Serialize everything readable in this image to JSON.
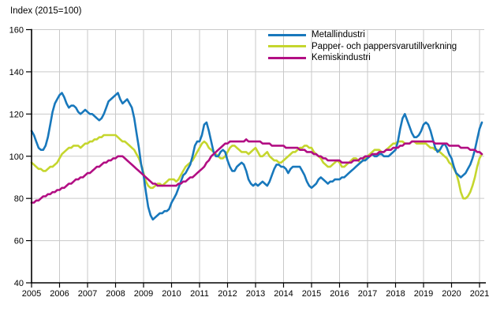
{
  "header": {
    "index_label": "Index (2015=100)"
  },
  "colors": {
    "background": "#ffffff",
    "grid": "#c9c9c9",
    "axis": "#000000",
    "metall": "#1878bc",
    "papper": "#c5d62e",
    "kemisk": "#b20e83"
  },
  "chart_data": {
    "type": "line",
    "title": "Index (2015=100)",
    "xlabel": "",
    "ylabel": "Index (2015=100)",
    "ylim": [
      40,
      160
    ],
    "y_ticks": [
      40,
      60,
      80,
      100,
      120,
      140,
      160
    ],
    "x_tick_years": [
      2005,
      2006,
      2007,
      2008,
      2009,
      2010,
      2011,
      2012,
      2013,
      2014,
      2015,
      2016,
      2017,
      2018,
      2019,
      2020,
      2021
    ],
    "x_start_year": 2005,
    "points_per_year": 12,
    "grid": true,
    "legend_position": "top-inside",
    "series": [
      {
        "name": "Metallindustri",
        "color": "#1878bc",
        "values": [
          112,
          110,
          107,
          104,
          103,
          103,
          105,
          109,
          115,
          121,
          125,
          127,
          129,
          130,
          128,
          125,
          123,
          124,
          124,
          123,
          121,
          120,
          121,
          122,
          121,
          120,
          120,
          119,
          118,
          117,
          118,
          120,
          123,
          126,
          127,
          128,
          129,
          130,
          127,
          125,
          126,
          127,
          125,
          123,
          118,
          111,
          104,
          96,
          91,
          83,
          76,
          72,
          70,
          71,
          72,
          73,
          73,
          74,
          74,
          75,
          78,
          80,
          82,
          85,
          88,
          91,
          92,
          94,
          96,
          100,
          105,
          107,
          107,
          110,
          115,
          116,
          112,
          107,
          102,
          100,
          100,
          102,
          103,
          102,
          98,
          95,
          93,
          93,
          95,
          96,
          97,
          96,
          93,
          89,
          87,
          86,
          87,
          86,
          87,
          88,
          87,
          86,
          88,
          91,
          94,
          96,
          96,
          95,
          95,
          94,
          92,
          94,
          95,
          95,
          95,
          95,
          93,
          91,
          88,
          86,
          85,
          86,
          87,
          89,
          90,
          89,
          88,
          87,
          88,
          88,
          89,
          89,
          89,
          90,
          90,
          91,
          92,
          93,
          94,
          95,
          96,
          97,
          98,
          98,
          99,
          100,
          101,
          100,
          100,
          101,
          101,
          100,
          100,
          100,
          101,
          102,
          103,
          107,
          113,
          118,
          120,
          117,
          114,
          111,
          109,
          109,
          110,
          112,
          115,
          116,
          115,
          112,
          108,
          104,
          102,
          103,
          105,
          106,
          104,
          101,
          99,
          95,
          92,
          91,
          90,
          91,
          92,
          94,
          96,
          99,
          103,
          108,
          113,
          116
        ]
      },
      {
        "name": "Papper- och pappersvarutillverkning",
        "color": "#c5d62e",
        "values": [
          97,
          96,
          95,
          94,
          94,
          93,
          93,
          94,
          95,
          95,
          96,
          97,
          99,
          101,
          102,
          103,
          104,
          104,
          105,
          105,
          105,
          104,
          105,
          106,
          106,
          107,
          107,
          108,
          108,
          109,
          109,
          110,
          110,
          110,
          110,
          110,
          110,
          109,
          108,
          107,
          107,
          106,
          105,
          104,
          103,
          101,
          99,
          96,
          92,
          88,
          86,
          85,
          85,
          86,
          87,
          87,
          86,
          87,
          88,
          89,
          89,
          89,
          88,
          89,
          91,
          93,
          95,
          96,
          97,
          98,
          100,
          102,
          104,
          106,
          107,
          106,
          104,
          103,
          102,
          101,
          100,
          99,
          99,
          100,
          102,
          104,
          105,
          105,
          104,
          103,
          102,
          102,
          102,
          101,
          102,
          103,
          104,
          102,
          100,
          100,
          101,
          102,
          100,
          99,
          98,
          98,
          97,
          97,
          98,
          99,
          100,
          101,
          102,
          102,
          103,
          104,
          104,
          105,
          105,
          104,
          104,
          102,
          101,
          100,
          99,
          97,
          96,
          95,
          95,
          96,
          97,
          98,
          97,
          95,
          95,
          96,
          97,
          98,
          99,
          99,
          98,
          97,
          98,
          99,
          100,
          101,
          102,
          103,
          103,
          103,
          102,
          102,
          103,
          104,
          105,
          106,
          106,
          107,
          107,
          107,
          106,
          106,
          106,
          107,
          107,
          106,
          106,
          106,
          106,
          106,
          105,
          104,
          104,
          103,
          103,
          102,
          101,
          100,
          99,
          97,
          96,
          94,
          92,
          88,
          83,
          80,
          80,
          81,
          83,
          86,
          90,
          95,
          99,
          101
        ]
      },
      {
        "name": "Kemiskindustri",
        "color": "#b20e83",
        "values": [
          78,
          78,
          79,
          79,
          80,
          81,
          81,
          82,
          82,
          83,
          83,
          84,
          84,
          85,
          85,
          86,
          87,
          87,
          88,
          89,
          89,
          90,
          90,
          91,
          92,
          92,
          93,
          94,
          95,
          95,
          96,
          97,
          97,
          98,
          98,
          99,
          99,
          100,
          100,
          100,
          99,
          98,
          97,
          96,
          95,
          94,
          93,
          92,
          91,
          90,
          89,
          88,
          87,
          87,
          86,
          86,
          86,
          86,
          86,
          86,
          86,
          86,
          86,
          87,
          87,
          88,
          88,
          89,
          90,
          90,
          91,
          92,
          93,
          94,
          95,
          97,
          98,
          100,
          101,
          102,
          103,
          104,
          105,
          106,
          106,
          107,
          107,
          107,
          107,
          107,
          107,
          107,
          108,
          107,
          107,
          107,
          107,
          107,
          107,
          106,
          106,
          106,
          106,
          105,
          105,
          105,
          105,
          105,
          105,
          104,
          104,
          104,
          104,
          104,
          104,
          103,
          103,
          103,
          102,
          102,
          102,
          101,
          101,
          100,
          100,
          99,
          99,
          98,
          98,
          98,
          98,
          98,
          98,
          97,
          97,
          97,
          97,
          97,
          98,
          98,
          98,
          99,
          99,
          100,
          100,
          100,
          101,
          101,
          101,
          102,
          102,
          102,
          103,
          103,
          103,
          104,
          104,
          104,
          105,
          105,
          106,
          106,
          106,
          107,
          107,
          107,
          107,
          107,
          107,
          107,
          107,
          107,
          107,
          106,
          106,
          106,
          106,
          106,
          106,
          105,
          105,
          105,
          105,
          105,
          104,
          104,
          104,
          104,
          103,
          103,
          103,
          102,
          102,
          101
        ]
      }
    ]
  }
}
